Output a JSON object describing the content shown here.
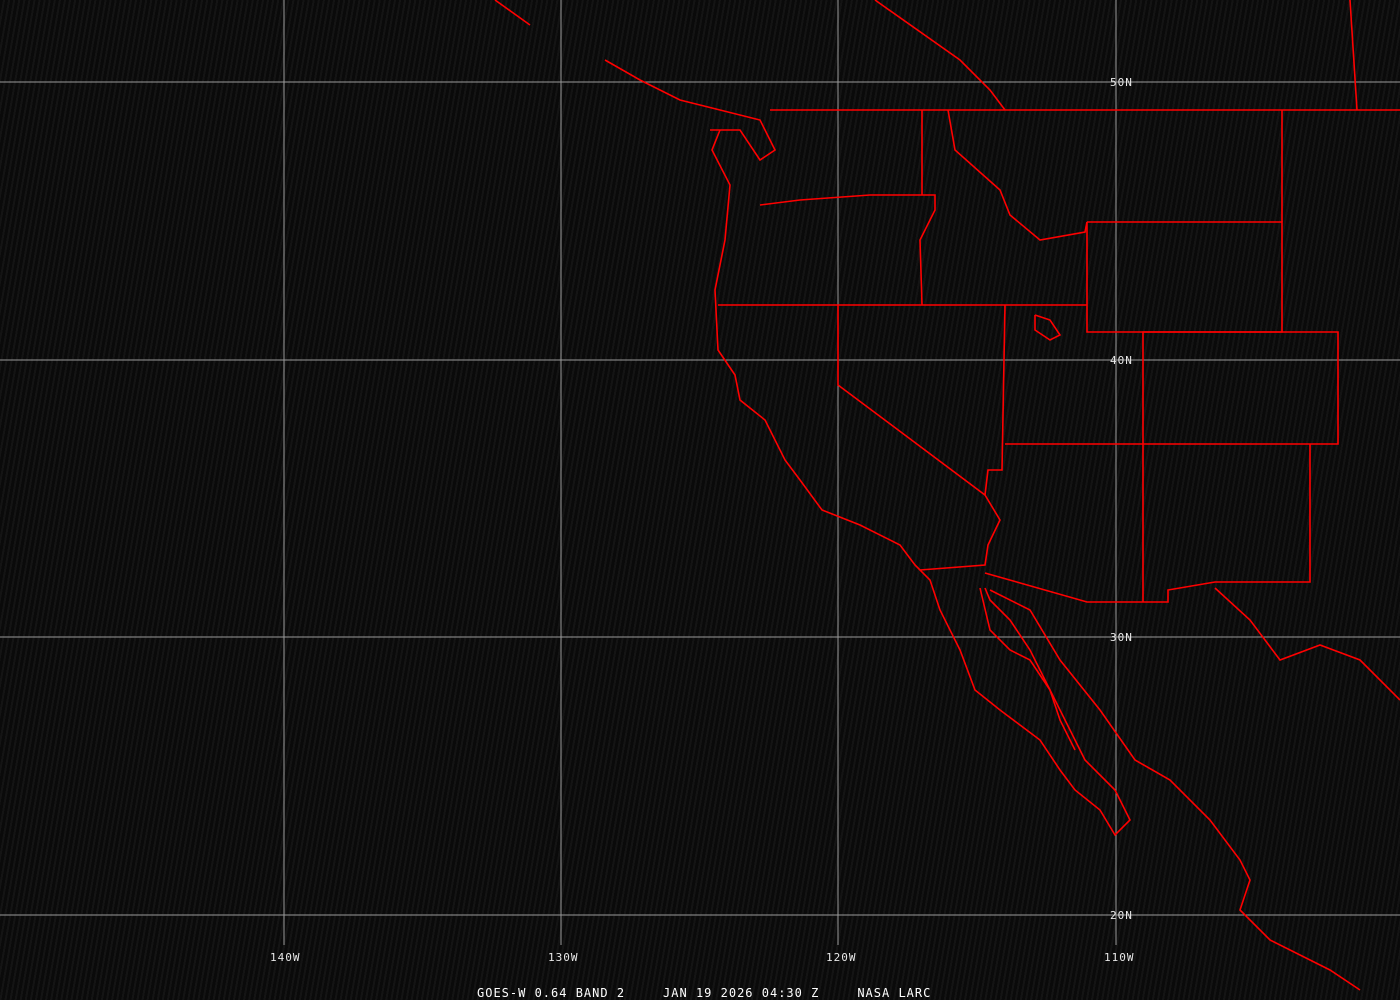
{
  "map": {
    "lat_labels": [
      "50N",
      "40N",
      "30N",
      "20N"
    ],
    "lon_labels": [
      "140W",
      "130W",
      "120W",
      "110W"
    ],
    "boundary_color": "#ff0000",
    "grid_color": "#9a9a9a"
  },
  "footer": {
    "satellite": "GOES-W 0.64 BAND 2",
    "datetime": "JAN 19 2026 04:30 Z",
    "source": "NASA LARC"
  }
}
